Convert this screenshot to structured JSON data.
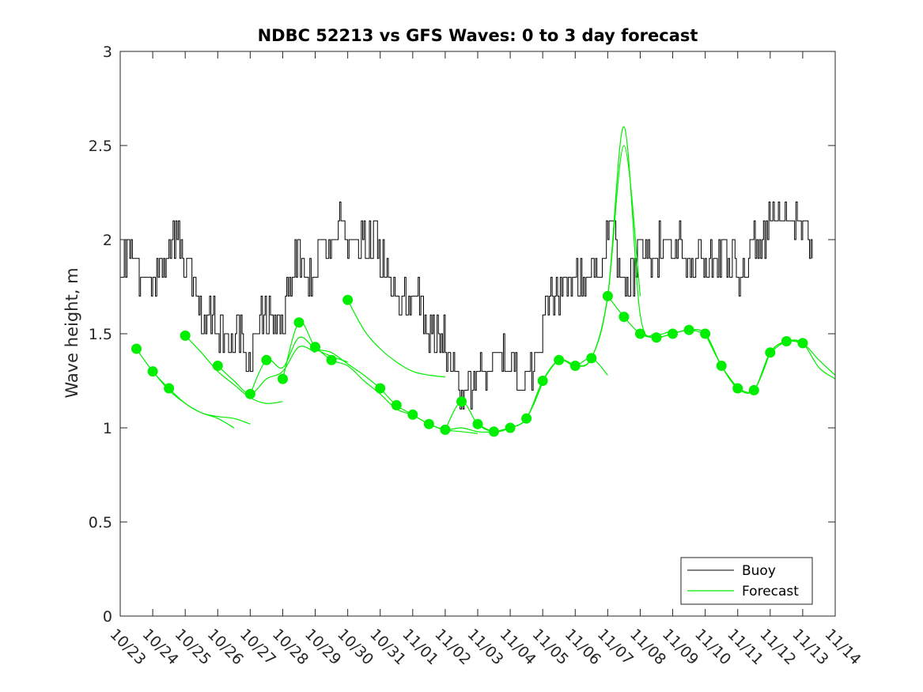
{
  "chart_data": {
    "type": "line",
    "title": "NDBC 52213 vs GFS Waves: 0 to 3 day forecast",
    "xlabel": "",
    "ylabel": "Wave height, m",
    "ylim": [
      0,
      3
    ],
    "xlim": [
      0,
      22
    ],
    "yticks": [
      "0",
      "0.5",
      "1",
      "1.5",
      "2",
      "2.5",
      "3"
    ],
    "xticks": [
      "10/23",
      "10/24",
      "10/25",
      "10/26",
      "10/27",
      "10/28",
      "10/29",
      "10/30",
      "10/31",
      "11/01",
      "11/02",
      "11/03",
      "11/04",
      "11/05",
      "11/06",
      "11/07",
      "11/08",
      "11/09",
      "11/10",
      "11/11",
      "11/12",
      "11/13",
      "11/14"
    ],
    "legend": {
      "position": "bottom-right",
      "entries": [
        "Buoy",
        "Forecast"
      ]
    },
    "colors": {
      "buoy": "#000000",
      "forecast": "#00ee00"
    },
    "buoy": {
      "name": "Buoy",
      "x": [
        0,
        0.3,
        0.6,
        1.0,
        1.3,
        1.6,
        1.9,
        2.2,
        2.5,
        2.8,
        3.1,
        3.4,
        3.7,
        4.0,
        4.3,
        4.5,
        4.8,
        5.0,
        5.3,
        5.6,
        5.9,
        6.2,
        6.5,
        6.8,
        7.1,
        7.5,
        7.9,
        8.2,
        8.5,
        8.8,
        9.1,
        9.4,
        9.7,
        10.0,
        10.2,
        10.5,
        10.8,
        11.1,
        11.4,
        11.7,
        12.0,
        12.3,
        12.6,
        12.9,
        13.0,
        13.3,
        13.7,
        14.0,
        14.3,
        14.6,
        14.9,
        15.0,
        15.2,
        15.4,
        15.6,
        15.8,
        16.0,
        16.3,
        16.6,
        16.9,
        17.2,
        17.5,
        17.8,
        18.1,
        18.4,
        18.7,
        19.0,
        19.3,
        19.6,
        19.9,
        20.2,
        20.5,
        20.8,
        21.0,
        21.2,
        21.3
      ],
      "values": [
        1.85,
        1.95,
        1.8,
        1.75,
        1.85,
        2.0,
        1.95,
        1.75,
        1.55,
        1.6,
        1.5,
        1.45,
        1.5,
        1.35,
        1.55,
        1.6,
        1.6,
        1.5,
        1.85,
        1.9,
        1.8,
        1.95,
        2.0,
        2.15,
        1.9,
        2.0,
        1.95,
        1.8,
        1.7,
        1.65,
        1.75,
        1.55,
        1.5,
        1.45,
        1.3,
        1.2,
        1.25,
        1.3,
        1.3,
        1.35,
        1.35,
        1.3,
        1.3,
        1.35,
        1.55,
        1.7,
        1.75,
        1.8,
        1.8,
        1.85,
        1.9,
        2.05,
        2.0,
        1.85,
        1.75,
        1.8,
        1.95,
        1.9,
        1.95,
        1.9,
        2.0,
        1.85,
        1.9,
        1.85,
        1.95,
        1.95,
        1.8,
        1.85,
        2.0,
        2.05,
        2.1,
        2.05,
        2.1,
        2.1,
        1.95,
        1.8
      ]
    },
    "forecast_runs": [
      {
        "x": [
          0.5,
          1.0,
          1.5,
          2.0,
          2.5,
          3.0,
          3.5
        ],
        "values": [
          1.42,
          1.3,
          1.21,
          1.13,
          1.08,
          1.05,
          1.0
        ]
      },
      {
        "x": [
          1.0,
          1.5,
          2.0,
          2.5,
          3.0,
          3.5,
          4.0
        ],
        "values": [
          1.3,
          1.2,
          1.13,
          1.08,
          1.06,
          1.05,
          1.02
        ]
      },
      {
        "x": [
          2.0,
          2.5,
          3.0,
          3.5,
          4.0,
          4.5,
          5.0
        ],
        "values": [
          1.49,
          1.4,
          1.3,
          1.23,
          1.16,
          1.13,
          1.14
        ]
      },
      {
        "x": [
          3.0,
          3.5,
          4.0,
          4.5,
          5.0,
          5.5,
          6.0
        ],
        "values": [
          1.33,
          1.25,
          1.18,
          1.26,
          1.3,
          1.43,
          1.4
        ]
      },
      {
        "x": [
          4.0,
          4.5,
          5.0,
          5.5,
          6.0,
          6.5,
          7.0
        ],
        "values": [
          1.18,
          1.36,
          1.32,
          1.48,
          1.42,
          1.38,
          1.35
        ]
      },
      {
        "x": [
          5.0,
          5.5,
          6.0,
          6.5,
          7.0,
          7.5,
          8.0
        ],
        "values": [
          1.26,
          1.56,
          1.43,
          1.4,
          1.34,
          1.28,
          1.21
        ]
      },
      {
        "x": [
          6.0,
          6.5,
          7.0,
          7.5,
          8.0,
          8.5,
          9.0
        ],
        "values": [
          1.43,
          1.36,
          1.33,
          1.25,
          1.18,
          1.1,
          1.07
        ]
      },
      {
        "x": [
          7.0,
          7.5,
          8.0,
          8.5,
          9.0,
          9.5,
          10.0
        ],
        "values": [
          1.68,
          1.52,
          1.42,
          1.35,
          1.3,
          1.28,
          1.27
        ]
      },
      {
        "x": [
          8.0,
          8.5,
          9.0,
          9.5,
          10.0,
          10.5,
          11.0
        ],
        "values": [
          1.21,
          1.12,
          1.07,
          1.02,
          0.99,
          0.98,
          0.97
        ]
      },
      {
        "x": [
          9.0,
          9.5,
          10.0,
          10.5,
          11.0,
          11.5,
          12.0
        ],
        "values": [
          1.07,
          1.02,
          0.99,
          1.0,
          0.98,
          0.98,
          1.0
        ]
      },
      {
        "x": [
          10.0,
          10.5,
          11.0,
          11.5,
          12.0,
          12.5,
          13.0
        ],
        "values": [
          0.99,
          1.14,
          1.02,
          0.98,
          1.0,
          1.05,
          1.24
        ]
      },
      {
        "x": [
          11.0,
          11.5,
          12.0,
          12.5,
          13.0,
          13.5,
          14.0
        ],
        "values": [
          1.02,
          0.98,
          1.0,
          1.05,
          1.25,
          1.36,
          1.33
        ]
      },
      {
        "x": [
          12.0,
          12.5,
          13.0,
          13.5,
          14.0,
          14.5,
          15.0
        ],
        "values": [
          1.0,
          1.05,
          1.25,
          1.36,
          1.33,
          1.37,
          1.28
        ]
      },
      {
        "x": [
          13.0,
          13.5,
          14.0,
          14.5,
          15.0,
          15.5,
          16.0
        ],
        "values": [
          1.25,
          1.36,
          1.33,
          1.37,
          1.7,
          2.5,
          1.7
        ]
      },
      {
        "x": [
          14.0,
          14.5,
          15.0,
          15.5,
          16.0,
          16.5,
          17.0
        ],
        "values": [
          1.33,
          1.37,
          1.7,
          2.6,
          1.6,
          1.5,
          1.52
        ]
      },
      {
        "x": [
          15.0,
          15.5,
          16.0,
          16.5,
          17.0,
          17.5,
          18.0
        ],
        "values": [
          1.7,
          1.59,
          1.5,
          1.48,
          1.5,
          1.52,
          1.5
        ]
      },
      {
        "x": [
          16.0,
          16.5,
          17.0,
          17.5,
          18.0,
          18.5,
          19.0
        ],
        "values": [
          1.5,
          1.48,
          1.5,
          1.52,
          1.5,
          1.33,
          1.21
        ]
      },
      {
        "x": [
          17.0,
          17.5,
          18.0,
          18.5,
          19.0,
          19.5,
          20.0
        ],
        "values": [
          1.5,
          1.52,
          1.5,
          1.33,
          1.21,
          1.2,
          1.4
        ]
      },
      {
        "x": [
          18.0,
          18.5,
          19.0,
          19.5,
          20.0,
          20.5,
          21.0
        ],
        "values": [
          1.5,
          1.33,
          1.21,
          1.2,
          1.4,
          1.46,
          1.45
        ]
      },
      {
        "x": [
          19.0,
          19.5,
          20.0,
          20.5,
          21.0,
          21.5,
          22.0
        ],
        "values": [
          1.21,
          1.2,
          1.4,
          1.46,
          1.45,
          1.32,
          1.26
        ]
      },
      {
        "x": [
          20.0,
          20.5,
          21.0,
          21.5,
          22.0
        ],
        "values": [
          1.4,
          1.46,
          1.45,
          1.36,
          1.28
        ]
      }
    ],
    "forecast_markers": {
      "x": [
        0.5,
        1.0,
        1.5,
        2.0,
        3.0,
        4.0,
        4.5,
        5.0,
        5.5,
        6.0,
        6.5,
        7.0,
        8.0,
        8.5,
        9.0,
        9.5,
        10.0,
        10.5,
        11.0,
        11.5,
        12.0,
        12.5,
        13.0,
        13.5,
        14.0,
        14.5,
        15.0,
        15.5,
        16.0,
        16.5,
        17.0,
        17.5,
        18.0,
        18.5,
        19.0,
        19.5,
        20.0,
        20.5,
        21.0
      ],
      "values": [
        1.42,
        1.3,
        1.21,
        1.49,
        1.33,
        1.18,
        1.36,
        1.26,
        1.56,
        1.43,
        1.36,
        1.68,
        1.21,
        1.12,
        1.07,
        1.02,
        0.99,
        1.14,
        1.02,
        0.98,
        1.0,
        1.05,
        1.25,
        1.36,
        1.33,
        1.37,
        1.7,
        1.59,
        1.5,
        1.48,
        1.5,
        1.52,
        1.5,
        1.33,
        1.21,
        1.2,
        1.4,
        1.46,
        1.45
      ]
    }
  }
}
